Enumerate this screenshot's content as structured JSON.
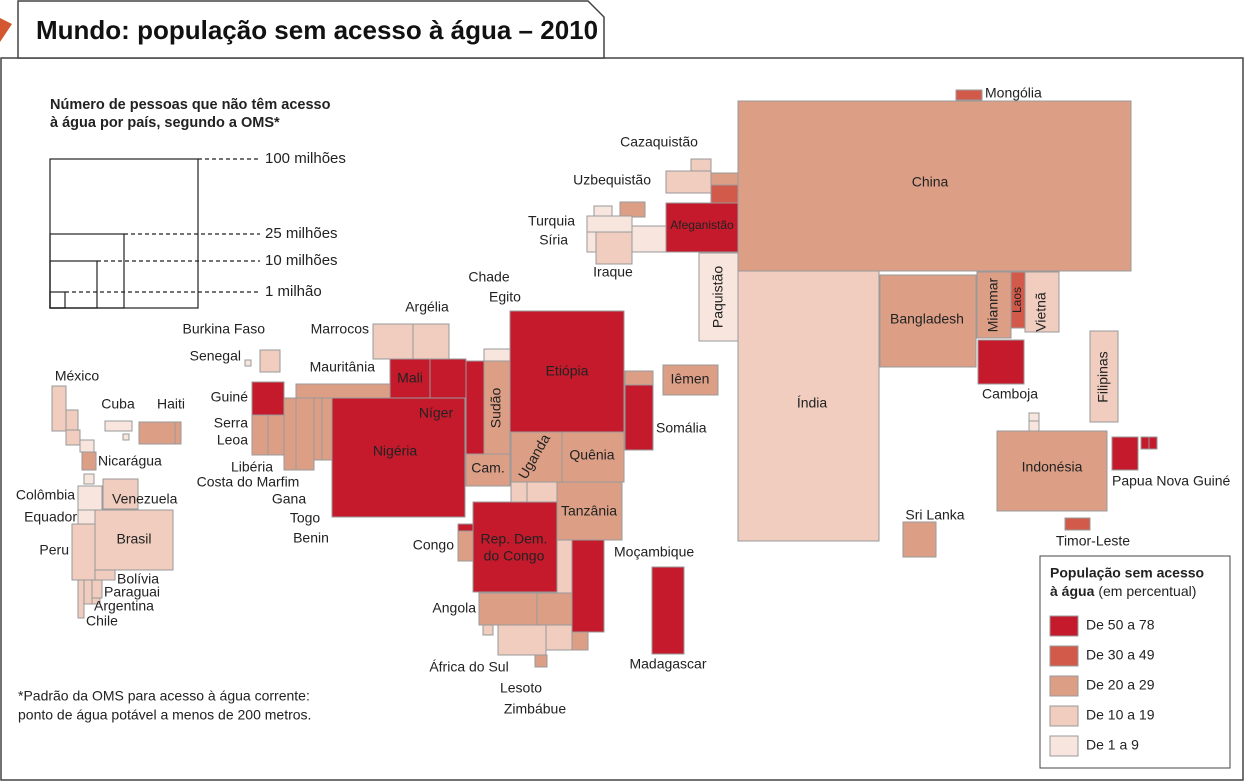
{
  "header": {
    "title": "Mundo: população sem acesso à água – 2010"
  },
  "scale": {
    "title_lines": [
      "Número de pessoas que não têm acesso",
      "à água por país, segundo a OMS*"
    ],
    "labels": [
      "100 milhões",
      "25 milhões",
      "10 milhões",
      "1 milhão"
    ]
  },
  "footnote": {
    "lines": [
      "*Padrão da OMS para acesso à água corrente:",
      "ponto de água potável a menos de 200 metros."
    ]
  },
  "legend": {
    "title_lines": [
      "População sem acesso",
      "à água"
    ],
    "note": "(em percentual)",
    "items": [
      {
        "label": "De 50 a 78",
        "color": "#c41a2b"
      },
      {
        "label": "De 30 a 49",
        "color": "#d25a4b"
      },
      {
        "label": "De 20 a 29",
        "color": "#dc9f86"
      },
      {
        "label": "De 10 a 19",
        "color": "#f0cdbf"
      },
      {
        "label": "De 1 a 9",
        "color": "#f8e6de"
      }
    ]
  },
  "countries": [
    "Mongólia",
    "Cazaquistão",
    "China",
    "Uzbequistão",
    "Turquia",
    "Síria",
    "Iraque",
    "Afeganistão",
    "Paquistão",
    "Índia",
    "Bangladesh",
    "Mianmar",
    "Laos",
    "Vietnã",
    "Camboja",
    "Filipinas",
    "Indonésia",
    "Papua Nova Guiné",
    "Timor-Leste",
    "Sri Lanka",
    "Chade",
    "Egito",
    "Argélia",
    "Marrocos",
    "Burkina Faso",
    "Senegal",
    "Mauritânia",
    "Mali",
    "Etiópia",
    "Iêmen",
    "Níger",
    "Sudão",
    "Guiné",
    "Somália",
    [
      "Serra",
      "Leoa"
    ],
    "Nigéria",
    "Quênia",
    "Uganda",
    "Libéria",
    "Costa do Marfim",
    "Cam.",
    "Gana",
    "Tanzânia",
    "Togo",
    "Benin",
    "Congo",
    [
      "Rep. Dem.",
      "do Congo"
    ],
    "Moçambique",
    "Angola",
    "Madagascar",
    "África do Sul",
    "Lesoto",
    "Zimbábue",
    "México",
    "Cuba",
    "Haiti",
    "Nicarágua",
    "Colômbia",
    "Venezuela",
    "Equador",
    "Brasil",
    "Peru",
    "Bolívia",
    "Paraguai",
    "Argentina",
    "Chile"
  ]
}
